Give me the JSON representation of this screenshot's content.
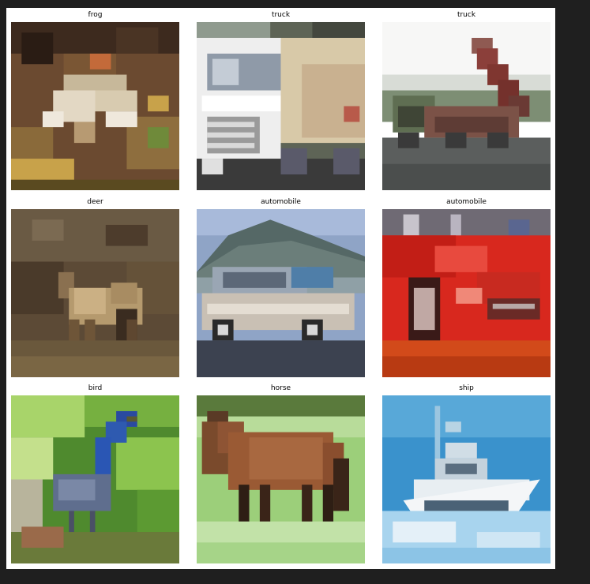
{
  "figure": {
    "background": "#ffffff",
    "page_background": "#1f1f1f"
  },
  "images": [
    {
      "label": "frog",
      "subject": "frog"
    },
    {
      "label": "truck",
      "subject": "white truck"
    },
    {
      "label": "truck",
      "subject": "dump truck"
    },
    {
      "label": "deer",
      "subject": "deer"
    },
    {
      "label": "automobile",
      "subject": "silver car"
    },
    {
      "label": "automobile",
      "subject": "red car"
    },
    {
      "label": "bird",
      "subject": "blue bird"
    },
    {
      "label": "horse",
      "subject": "brown horse"
    },
    {
      "label": "ship",
      "subject": "white boat"
    }
  ]
}
